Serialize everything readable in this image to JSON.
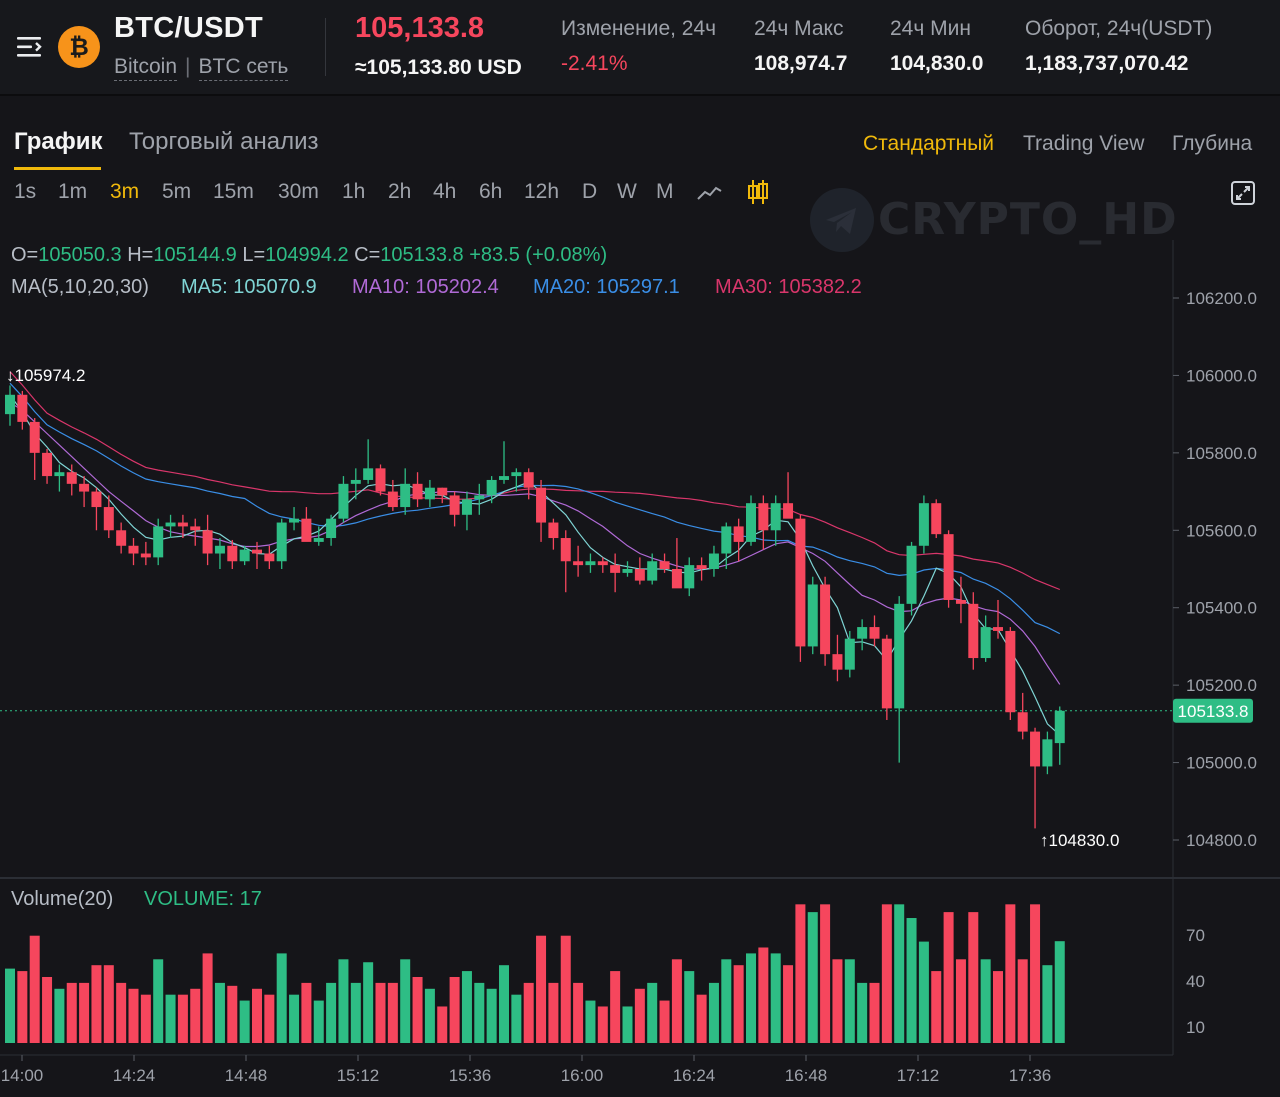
{
  "header": {
    "pair": "BTC/USDT",
    "coin_logo": "₿",
    "coin_name": "Bitcoin",
    "network": "BTC сеть",
    "last_price": "105,133.8",
    "last_price_usd": "≈105,133.80 USD",
    "stats": [
      {
        "label": "Изменение, 24ч",
        "value": "-2.41%"
      },
      {
        "label": "24ч Макс",
        "value": "108,974.7"
      },
      {
        "label": "24ч Мин",
        "value": "104,830.0"
      },
      {
        "label": "Оборот, 24ч(USDT)",
        "value": "1,183,737,070.42"
      }
    ]
  },
  "tabs": {
    "chart": "График",
    "analysis": "Торговый анализ",
    "views": [
      "Стандартный",
      "Trading View",
      "Глубина"
    ]
  },
  "intervals": [
    "1s",
    "1m",
    "3m",
    "5m",
    "15m",
    "30m",
    "1h",
    "2h",
    "4h",
    "6h",
    "12h",
    "D",
    "W",
    "M"
  ],
  "active_interval": "3m",
  "watermark": "CRYPTO_HD",
  "legend": {
    "o_label": "O=",
    "o": "105050.3",
    "h_label": "H=",
    "h": "105144.9",
    "l_label": "L=",
    "l": "104994.2",
    "c_label": "C=",
    "c": "105133.8",
    "change": "+83.5 (+0.08%)",
    "ma_title": "MA(5,10,20,30)",
    "ma5": "MA5: 105070.9",
    "ma10": "MA10: 105202.4",
    "ma20": "MA20: 105297.1",
    "ma30": "MA30: 105382.2"
  },
  "volume": {
    "title": "Volume(20)",
    "value": "VOLUME: 17"
  },
  "colors": {
    "up": "#2ebd85",
    "down": "#f6465d",
    "accent": "#f0b90b",
    "ma5": "#7fd4d4",
    "ma10": "#b06ad6",
    "ma20": "#3a8ee6",
    "ma30": "#d9366b"
  },
  "icons": {
    "menu": "menu-icon",
    "line": "line-chart-icon",
    "candle": "candlestick-icon",
    "fullscreen": "fullscreen-icon"
  },
  "chart_data": {
    "type": "candlestick",
    "interval": "3m",
    "price_axis": {
      "ticks": [
        "106200.0",
        "106000.0",
        "105800.0",
        "105600.0",
        "105400.0",
        "105200.0",
        "105000.0",
        "104800.0"
      ],
      "range": [
        104700,
        106330
      ]
    },
    "volume_axis": {
      "ticks": [
        "70",
        "40",
        "10"
      ],
      "range": [
        0,
        95
      ]
    },
    "time_labels": [
      "14:00",
      "14:24",
      "14:48",
      "15:12",
      "15:36",
      "16:00",
      "16:24",
      "16:48",
      "17:12",
      "17:36"
    ],
    "current_price_label": "105133.8",
    "max_marker": "105974.2",
    "min_marker": "104830.0",
    "candles": [
      [
        105900,
        105974.2,
        105870,
        105950
      ],
      [
        105950,
        105960,
        105860,
        105880
      ],
      [
        105880,
        105890,
        105730,
        105800
      ],
      [
        105800,
        105810,
        105720,
        105740
      ],
      [
        105740,
        105770,
        105700,
        105750
      ],
      [
        105750,
        105770,
        105690,
        105720
      ],
      [
        105720,
        105740,
        105660,
        105700
      ],
      [
        105700,
        105710,
        105600,
        105660
      ],
      [
        105660,
        105690,
        105580,
        105600
      ],
      [
        105600,
        105620,
        105540,
        105560
      ],
      [
        105560,
        105580,
        105510,
        105540
      ],
      [
        105540,
        105570,
        105510,
        105530
      ],
      [
        105530,
        105630,
        105510,
        105610
      ],
      [
        105610,
        105640,
        105580,
        105620
      ],
      [
        105620,
        105640,
        105580,
        105610
      ],
      [
        105610,
        105630,
        105560,
        105600
      ],
      [
        105600,
        105640,
        105510,
        105540
      ],
      [
        105540,
        105580,
        105500,
        105560
      ],
      [
        105560,
        105575,
        105500,
        105520
      ],
      [
        105520,
        105560,
        105510,
        105550
      ],
      [
        105550,
        105570,
        105500,
        105540
      ],
      [
        105540,
        105560,
        105500,
        105520
      ],
      [
        105520,
        105630,
        105500,
        105620
      ],
      [
        105620,
        105660,
        105600,
        105630
      ],
      [
        105630,
        105660,
        105580,
        105570
      ],
      [
        105570,
        105610,
        105560,
        105580
      ],
      [
        105580,
        105640,
        105560,
        105630
      ],
      [
        105630,
        105740,
        105620,
        105720
      ],
      [
        105720,
        105760,
        105680,
        105730
      ],
      [
        105730,
        105835,
        105720,
        105760
      ],
      [
        105760,
        105770,
        105690,
        105700
      ],
      [
        105700,
        105730,
        105650,
        105660
      ],
      [
        105660,
        105760,
        105640,
        105720
      ],
      [
        105720,
        105750,
        105660,
        105680
      ],
      [
        105680,
        105730,
        105660,
        105710
      ],
      [
        105710,
        105710,
        105670,
        105690
      ],
      [
        105690,
        105700,
        105610,
        105640
      ],
      [
        105640,
        105700,
        105600,
        105680
      ],
      [
        105680,
        105720,
        105640,
        105690
      ],
      [
        105690,
        105740,
        105670,
        105730
      ],
      [
        105730,
        105830,
        105720,
        105740
      ],
      [
        105740,
        105760,
        105700,
        105750
      ],
      [
        105750,
        105760,
        105680,
        105710
      ],
      [
        105710,
        105730,
        105570,
        105620
      ],
      [
        105620,
        105630,
        105550,
        105580
      ],
      [
        105580,
        105600,
        105440,
        105520
      ],
      [
        105520,
        105560,
        105480,
        105510
      ],
      [
        105510,
        105540,
        105490,
        105520
      ],
      [
        105520,
        105530,
        105490,
        105510
      ],
      [
        105510,
        105540,
        105440,
        105490
      ],
      [
        105490,
        105520,
        105480,
        105500
      ],
      [
        105500,
        105530,
        105460,
        105470
      ],
      [
        105470,
        105540,
        105460,
        105520
      ],
      [
        105520,
        105540,
        105490,
        105500
      ],
      [
        105500,
        105580,
        105460,
        105450
      ],
      [
        105450,
        105530,
        105430,
        105510
      ],
      [
        105510,
        105530,
        105470,
        105500
      ],
      [
        105500,
        105560,
        105480,
        105540
      ],
      [
        105540,
        105620,
        105500,
        105610
      ],
      [
        105610,
        105630,
        105520,
        105570
      ],
      [
        105570,
        105690,
        105560,
        105670
      ],
      [
        105670,
        105690,
        105550,
        105600
      ],
      [
        105600,
        105690,
        105560,
        105670
      ],
      [
        105670,
        105750,
        105640,
        105630
      ],
      [
        105630,
        105640,
        105260,
        105300
      ],
      [
        105300,
        105480,
        105280,
        105460
      ],
      [
        105460,
        105480,
        105250,
        105280
      ],
      [
        105280,
        105330,
        105210,
        105240
      ],
      [
        105240,
        105340,
        105220,
        105320
      ],
      [
        105320,
        105370,
        105290,
        105350
      ],
      [
        105350,
        105380,
        105300,
        105320
      ],
      [
        105320,
        105330,
        105110,
        105140
      ],
      [
        105140,
        105430,
        105000,
        105410
      ],
      [
        105410,
        105570,
        105380,
        105560
      ],
      [
        105560,
        105690,
        105540,
        105670
      ],
      [
        105670,
        105680,
        105580,
        105590
      ],
      [
        105590,
        105600,
        105400,
        105420
      ],
      [
        105420,
        105480,
        105360,
        105410
      ],
      [
        105410,
        105440,
        105240,
        105270
      ],
      [
        105270,
        105380,
        105260,
        105350
      ],
      [
        105350,
        105420,
        105320,
        105340
      ],
      [
        105340,
        105350,
        105110,
        105130
      ],
      [
        105130,
        105180,
        105060,
        105080
      ],
      [
        105080,
        105090,
        104830,
        104990
      ],
      [
        104990,
        105080,
        104970,
        105060
      ],
      [
        105050.3,
        105144.9,
        104994.2,
        105133.8
      ]
    ],
    "ma": {
      "ma5": [
        105950,
        105905,
        105850,
        105815,
        105775,
        105752,
        105735,
        105710,
        105680,
        105642,
        105608,
        105582,
        105575,
        105582,
        105585,
        105598,
        105600,
        105590,
        105568,
        105555,
        105540,
        105538,
        105560,
        105578,
        105585,
        105598,
        105628,
        105660,
        105690,
        105715,
        105720,
        105715,
        105718,
        105706,
        105692,
        105690,
        105675,
        105670,
        105668,
        105680,
        105700,
        105712,
        105725,
        105700,
        105670,
        105640,
        105595,
        105555,
        105530,
        105512,
        105506,
        105500,
        105500,
        105500,
        105492,
        105490,
        105498,
        105502,
        105528,
        105548,
        105585,
        105600,
        105626,
        105622,
        105576,
        105508,
        105450,
        105400,
        105310,
        105312,
        105302,
        105264,
        105318,
        105366,
        105430,
        105502,
        105488,
        105454,
        105384,
        105346,
        105344,
        105290,
        105236,
        105170,
        105100,
        105071
      ],
      "ma10": [
        105930,
        105910,
        105880,
        105850,
        105820,
        105790,
        105760,
        105730,
        105700,
        105675,
        105650,
        105625,
        105608,
        105596,
        105590,
        105585,
        105580,
        105575,
        105565,
        105558,
        105558,
        105562,
        105572,
        105578,
        105580,
        105586,
        105600,
        105620,
        105638,
        105652,
        105665,
        105675,
        105688,
        105694,
        105696,
        105700,
        105700,
        105697,
        105692,
        105690,
        105690,
        105692,
        105694,
        105687,
        105676,
        105665,
        105650,
        105630,
        105610,
        105585,
        105560,
        105540,
        105528,
        105518,
        105508,
        105500,
        105500,
        105502,
        105510,
        105520,
        105535,
        105550,
        105565,
        105570,
        105555,
        105540,
        105520,
        105490,
        105460,
        105432,
        105420,
        105402,
        105390,
        105392,
        105410,
        105420,
        105425,
        105420,
        105405,
        105395,
        105390,
        105370,
        105340,
        105300,
        105250,
        105202
      ]
    }
  }
}
